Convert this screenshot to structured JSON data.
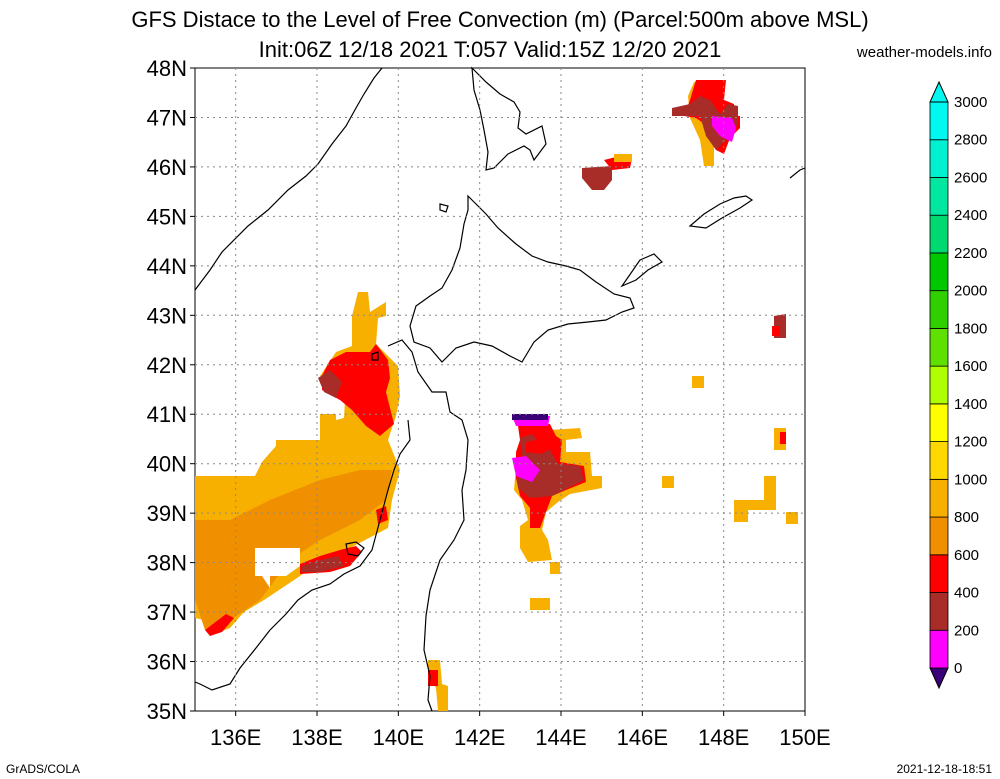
{
  "title": {
    "line1": "GFS Distace to the Level of Free Convection (m) (Parcel:500m above MSL)",
    "line2": "Init:06Z 12/18 2021 T:057 Valid:15Z 12/20 2021"
  },
  "credit": "weather-models.info",
  "footer": {
    "left": "GrADS/COLA",
    "right": "2021-12-18-18:51"
  },
  "map": {
    "lon_range": [
      135,
      150
    ],
    "lat_range": [
      35,
      48
    ],
    "lat_labels": [
      "35N",
      "36N",
      "37N",
      "38N",
      "39N",
      "40N",
      "41N",
      "42N",
      "43N",
      "44N",
      "45N",
      "46N",
      "47N",
      "48N"
    ],
    "lon_labels": [
      "136E",
      "138E",
      "140E",
      "142E",
      "144E",
      "146E",
      "148E",
      "150E"
    ],
    "grid_lons": [
      136,
      138,
      140,
      142,
      144,
      146,
      148
    ],
    "grid_lats": [
      36,
      37,
      38,
      39,
      40,
      41,
      42,
      43,
      44,
      45,
      46,
      47
    ]
  },
  "colorbar": {
    "labels": [
      "0",
      "200",
      "400",
      "600",
      "800",
      "1000",
      "1200",
      "1400",
      "1600",
      "1800",
      "2000",
      "2200",
      "2400",
      "2600",
      "2800",
      "3000"
    ],
    "colors": [
      "#3a0078",
      "#ff00ff",
      "#a82c28",
      "#ff0000",
      "#f09000",
      "#f8b000",
      "#ffd800",
      "#ffff00",
      "#b0ff00",
      "#60e000",
      "#30d000",
      "#00c800",
      "#00d870",
      "#00e8a0",
      "#00f0d0",
      "#00f8f0"
    ]
  }
}
